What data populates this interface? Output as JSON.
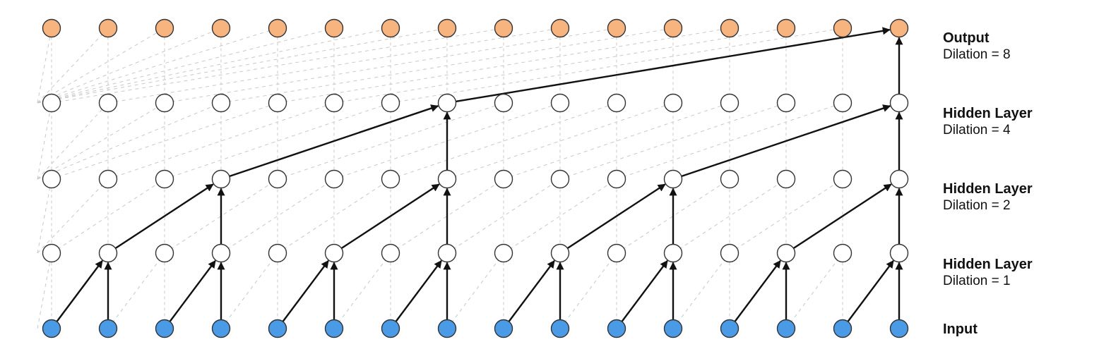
{
  "diagram": {
    "columns": 16,
    "layers": [
      {
        "role": "output",
        "name": "Output",
        "detail": "Dilation = 8",
        "dilation": 8,
        "fill": "#f8b47f"
      },
      {
        "role": "hidden",
        "name": "Hidden Layer",
        "detail": "Dilation = 4",
        "dilation": 4,
        "fill": "#ffffff"
      },
      {
        "role": "hidden",
        "name": "Hidden Layer",
        "detail": "Dilation = 2",
        "dilation": 2,
        "fill": "#ffffff"
      },
      {
        "role": "hidden",
        "name": "Hidden Layer",
        "detail": "Dilation = 1",
        "dilation": 1,
        "fill": "#ffffff"
      },
      {
        "role": "input",
        "name": "Input",
        "detail": "",
        "fill": "#4a9ae6"
      }
    ],
    "colors": {
      "node_stroke": "#333333",
      "arrow": "#111111",
      "guide_line": "#c8c8c8",
      "label_text": "#111111"
    }
  }
}
